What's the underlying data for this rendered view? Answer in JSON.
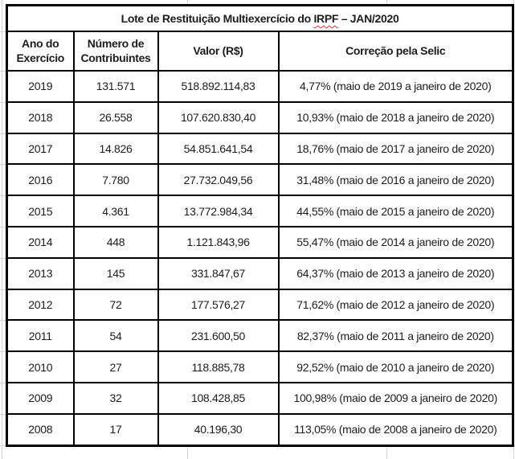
{
  "title": {
    "prefix": "Lote de Restituição Multiexercício do ",
    "highlight": "IRPF",
    "suffix": " – JAN/2020"
  },
  "table": {
    "columns": [
      "Ano do\nExercício",
      "Número de\nContribuintes",
      "Valor (R$)",
      "Correção pela Selic"
    ],
    "rows": [
      [
        "2019",
        "131.571",
        "518.892.114,83",
        "4,77% (maio de 2019 a janeiro de 2020)"
      ],
      [
        "2018",
        "26.558",
        "107.620.830,40",
        "10,93% (maio de 2018 a janeiro de 2020)"
      ],
      [
        "2017",
        "14.826",
        "54.851.641,54",
        "18,76% (maio de 2017 a janeiro de 2020)"
      ],
      [
        "2016",
        "7.780",
        "27.732.049,56",
        "31,48% (maio de 2016 a janeiro de 2020)"
      ],
      [
        "2015",
        "4.361",
        "13.772.984,34",
        "44,55% (maio de 2015 a janeiro de 2020)"
      ],
      [
        "2014",
        "448",
        "1.121.843,96",
        "55,47% (maio de 2014 a janeiro de 2020)"
      ],
      [
        "2013",
        "145",
        "331.847,67",
        "64,37% (maio de 2013 a janeiro de 2020)"
      ],
      [
        "2012",
        "72",
        "177.576,27",
        "71,62% (maio de 2012 a janeiro de 2020)"
      ],
      [
        "2011",
        "54",
        "231.600,50",
        "82,37% (maio de 2011 a janeiro de 2020)"
      ],
      [
        "2010",
        "27",
        "118.885,78",
        "92,52% (maio de 2010 a janeiro de 2020)"
      ],
      [
        "2009",
        "32",
        "108.428,85",
        "100,98% (maio de 2009 a janeiro de 2020)"
      ],
      [
        "2008",
        "17",
        "40.196,30",
        "113,05% (maio de 2008 a janeiro de 2020)"
      ]
    ]
  },
  "colors": {
    "border": "#000000",
    "gridline": "#d4d4d4",
    "spellcheck_squiggle": "#c43b3b",
    "text": "#1c1c1c",
    "background": "#ffffff"
  }
}
